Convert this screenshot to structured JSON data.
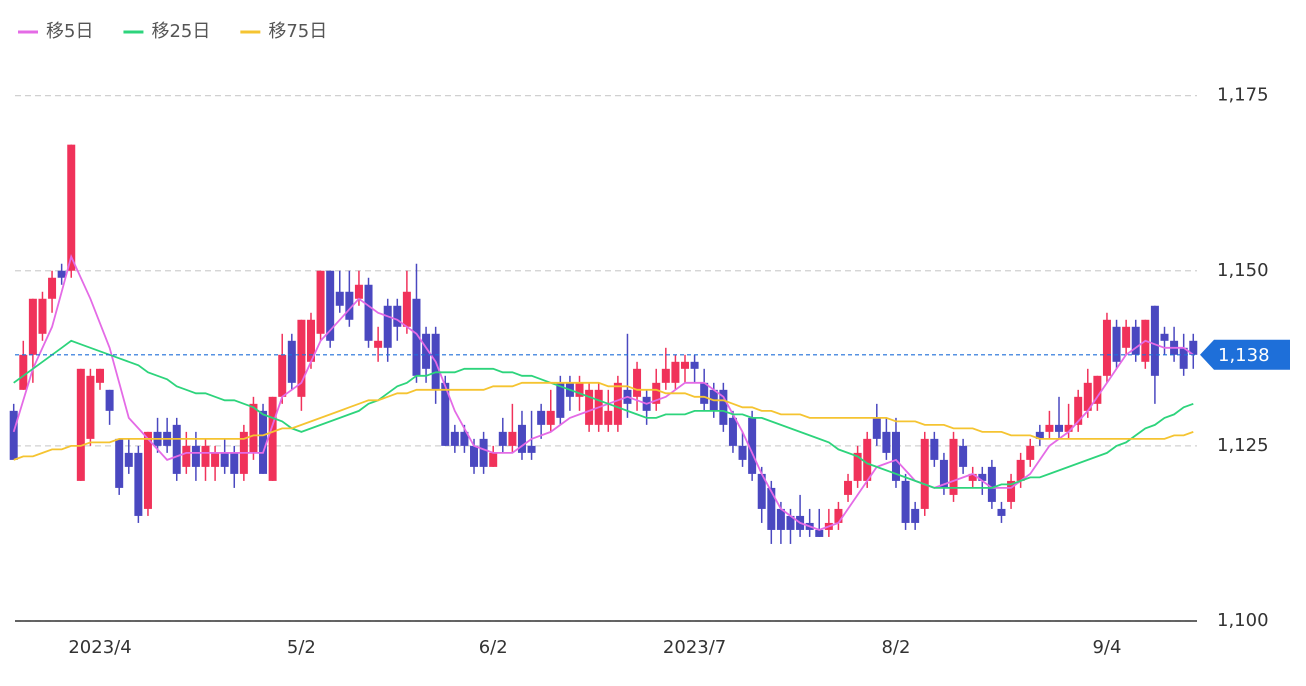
{
  "chart_data": {
    "type": "candlestick",
    "categories": [
      null,
      null,
      null,
      null,
      null,
      null,
      null,
      null,
      null,
      "2023/4",
      null,
      null,
      null,
      null,
      null,
      null,
      null,
      null,
      null,
      null,
      null,
      null,
      null,
      null,
      null,
      null,
      null,
      null,
      null,
      null,
      "5/2",
      null,
      null,
      null,
      null,
      null,
      null,
      null,
      null,
      null,
      null,
      null,
      null,
      null,
      null,
      null,
      null,
      null,
      null,
      null,
      "6/2",
      null,
      null,
      null,
      null,
      null,
      null,
      null,
      null,
      null,
      null,
      null,
      null,
      null,
      null,
      null,
      null,
      null,
      null,
      null,
      null,
      "2023/7",
      null,
      null,
      null,
      null,
      null,
      null,
      null,
      null,
      null,
      null,
      null,
      null,
      null,
      null,
      null,
      null,
      null,
      null,
      null,
      null,
      "8/2",
      null,
      null,
      null,
      null,
      null,
      null,
      null,
      null,
      null,
      null,
      null,
      null,
      null,
      null,
      null,
      null,
      null,
      null,
      null,
      null,
      null,
      "9/4",
      null,
      null,
      null,
      null,
      null,
      null,
      null,
      null,
      null
    ],
    "candles": {
      "up_color": "#f0325a",
      "down_color": "#4a48c0",
      "open": [
        1130,
        1133,
        1138,
        1141,
        1146,
        1150,
        1150,
        1120,
        1126,
        1134,
        1133,
        1126,
        1124,
        1124,
        1116,
        1127,
        1127,
        1128,
        1122,
        1125,
        1122,
        1122,
        1124,
        1124,
        1121,
        1124,
        1130,
        1120,
        1132,
        1140,
        1132,
        1137,
        1141,
        1150,
        1147,
        1147,
        1146,
        1148,
        1139,
        1145,
        1145,
        1142,
        1146,
        1141,
        1141,
        1134,
        1127,
        1127,
        1125,
        1126,
        1122,
        1127,
        1125,
        1128,
        1125,
        1130,
        1128,
        1134,
        1134,
        1132,
        1128,
        1128,
        1128,
        1128,
        1133,
        1132,
        1132,
        1131,
        1134,
        1134,
        1136,
        1137,
        1134,
        1133,
        1133,
        1129,
        1125,
        1129,
        1121,
        1119,
        1116,
        1115,
        1115,
        1114,
        1113,
        1113,
        1114,
        1118,
        1120,
        1120,
        1129,
        1127,
        1127,
        1120,
        1116,
        1116,
        1126,
        1123,
        1118,
        1125,
        1120,
        1121,
        1122,
        1116,
        1117,
        1120,
        1123,
        1127,
        1127,
        1128,
        1127,
        1128,
        1130,
        1131,
        1135,
        1142,
        1139,
        1142,
        1137,
        1145,
        1141,
        1140,
        1139,
        1140
      ],
      "high": [
        1131,
        1140,
        1146,
        1147,
        1150,
        1151,
        1168,
        1136,
        1136,
        1136,
        1133,
        1126,
        1126,
        1125,
        1127,
        1129,
        1129,
        1129,
        1127,
        1127,
        1126,
        1125,
        1126,
        1125,
        1128,
        1132,
        1131,
        1132,
        1141,
        1141,
        1143,
        1144,
        1150,
        1150,
        1150,
        1150,
        1150,
        1149,
        1142,
        1146,
        1146,
        1150,
        1151,
        1142,
        1142,
        1135,
        1128,
        1128,
        1126,
        1127,
        1125,
        1129,
        1131,
        1130,
        1130,
        1131,
        1133,
        1135,
        1135,
        1135,
        1134,
        1134,
        1133,
        1135,
        1141,
        1137,
        1133,
        1136,
        1139,
        1138,
        1138,
        1138,
        1136,
        1134,
        1134,
        1130,
        1127,
        1130,
        1122,
        1120,
        1117,
        1116,
        1118,
        1116,
        1116,
        1116,
        1117,
        1121,
        1125,
        1127,
        1131,
        1129,
        1129,
        1121,
        1117,
        1127,
        1127,
        1124,
        1127,
        1126,
        1122,
        1122,
        1123,
        1117,
        1121,
        1124,
        1126,
        1128,
        1130,
        1132,
        1131,
        1133,
        1136,
        1135,
        1144,
        1143,
        1143,
        1143,
        1143,
        1145,
        1142,
        1142,
        1141,
        1141
      ],
      "low": [
        1123,
        1133,
        1134,
        1140,
        1144,
        1148,
        1149,
        1120,
        1125,
        1133,
        1128,
        1118,
        1121,
        1114,
        1115,
        1124,
        1124,
        1120,
        1121,
        1120,
        1120,
        1120,
        1121,
        1119,
        1120,
        1123,
        1121,
        1120,
        1131,
        1133,
        1130,
        1136,
        1140,
        1139,
        1144,
        1142,
        1145,
        1139,
        1137,
        1137,
        1140,
        1141,
        1134,
        1134,
        1131,
        1125,
        1124,
        1124,
        1121,
        1121,
        1122,
        1124,
        1124,
        1123,
        1123,
        1126,
        1127,
        1128,
        1130,
        1130,
        1127,
        1127,
        1127,
        1127,
        1129,
        1130,
        1128,
        1130,
        1133,
        1133,
        1134,
        1134,
        1130,
        1129,
        1127,
        1124,
        1122,
        1120,
        1114,
        1111,
        1111,
        1111,
        1112,
        1112,
        1112,
        1112,
        1113,
        1117,
        1119,
        1119,
        1125,
        1123,
        1119,
        1113,
        1113,
        1115,
        1122,
        1118,
        1117,
        1121,
        1119,
        1118,
        1116,
        1114,
        1116,
        1119,
        1122,
        1125,
        1126,
        1126,
        1126,
        1127,
        1129,
        1130,
        1134,
        1136,
        1138,
        1137,
        1136,
        1131,
        1138,
        1137,
        1135,
        1136
      ],
      "close": [
        1123,
        1138,
        1146,
        1146,
        1149,
        1149,
        1168,
        1136,
        1135,
        1136,
        1130,
        1119,
        1122,
        1115,
        1127,
        1125,
        1125,
        1121,
        1125,
        1122,
        1125,
        1124,
        1122,
        1121,
        1127,
        1131,
        1121,
        1132,
        1138,
        1134,
        1143,
        1143,
        1150,
        1140,
        1145,
        1143,
        1148,
        1140,
        1140,
        1139,
        1142,
        1147,
        1135,
        1136,
        1133,
        1125,
        1125,
        1125,
        1122,
        1122,
        1124,
        1125,
        1127,
        1124,
        1124,
        1128,
        1130,
        1129,
        1132,
        1134,
        1133,
        1133,
        1130,
        1134,
        1131,
        1136,
        1130,
        1134,
        1136,
        1137,
        1137,
        1136,
        1131,
        1130,
        1128,
        1125,
        1123,
        1121,
        1116,
        1113,
        1113,
        1113,
        1113,
        1113,
        1112,
        1114,
        1116,
        1120,
        1124,
        1126,
        1126,
        1124,
        1120,
        1114,
        1114,
        1126,
        1123,
        1119,
        1126,
        1122,
        1121,
        1120,
        1117,
        1115,
        1120,
        1123,
        1125,
        1126,
        1128,
        1127,
        1128,
        1132,
        1134,
        1135,
        1143,
        1137,
        1142,
        1138,
        1143,
        1135,
        1140,
        1138,
        1136,
        1138
      ]
    },
    "series": [
      {
        "name": "移5日",
        "color": "#e46be6",
        "values": [
          1127,
          1131.5,
          1136,
          1139,
          1142,
          1147,
          1152,
          1149,
          1146,
          1142.5,
          1139,
          1134,
          1129,
          1127.5,
          1126,
          1124.5,
          1123,
          1123.5,
          1124,
          1124,
          1124,
          1124,
          1124,
          1124,
          1124,
          1124,
          1124,
          1128,
          1132,
          1133,
          1134,
          1137,
          1140,
          1141.5,
          1143,
          1144.5,
          1146,
          1145,
          1144,
          1143.5,
          1143,
          1142,
          1141,
          1139,
          1137,
          1133.5,
          1130,
          1127.5,
          1125,
          1124.5,
          1124,
          1124,
          1124,
          1125,
          1126,
          1126.5,
          1127,
          1128,
          1129,
          1129.5,
          1130,
          1130.5,
          1131,
          1131.5,
          1132,
          1131.5,
          1131,
          1131.5,
          1132,
          1133,
          1134,
          1134,
          1134,
          1133,
          1132,
          1129.5,
          1127,
          1124,
          1121,
          1118.5,
          1116,
          1115,
          1114,
          1113.5,
          1113,
          1113.5,
          1114,
          1116,
          1118,
          1120,
          1122,
          1122.5,
          1123,
          1121.5,
          1120,
          1119.5,
          1119,
          1119.5,
          1120,
          1120.5,
          1121,
          1120,
          1119,
          1119,
          1119,
          1120,
          1121,
          1123,
          1125,
          1126,
          1127,
          1128.5,
          1130,
          1132,
          1134,
          1136,
          1138,
          1139,
          1140,
          1139.5,
          1139,
          1139,
          1139,
          1138
        ]
      },
      {
        "name": "移25日",
        "color": "#2dd47c",
        "values": [
          1134,
          1135,
          1136,
          1137,
          1138,
          1139,
          1140,
          1139.5,
          1139,
          1138.5,
          1138,
          1137.5,
          1137,
          1136.5,
          1135.5,
          1135,
          1134.5,
          1133.5,
          1133,
          1132.5,
          1132.5,
          1132,
          1131.5,
          1131.5,
          1131,
          1130.5,
          1129.5,
          1129,
          1128.5,
          1127.5,
          1127,
          1127.5,
          1128,
          1128.5,
          1129,
          1129.5,
          1130,
          1131,
          1131.5,
          1132.5,
          1133.5,
          1134,
          1135,
          1135,
          1135.5,
          1135.5,
          1135.5,
          1136,
          1136,
          1136,
          1136,
          1135.5,
          1135.5,
          1135,
          1135,
          1134.5,
          1134,
          1133.5,
          1133,
          1132.5,
          1132,
          1131.5,
          1131,
          1130.5,
          1130,
          1129.5,
          1129,
          1129,
          1129.5,
          1129.5,
          1129.5,
          1130,
          1130,
          1130,
          1130,
          1129.5,
          1129.5,
          1129,
          1129,
          1128.5,
          1128,
          1127.5,
          1127,
          1126.5,
          1126,
          1125.5,
          1124.5,
          1124,
          1123.5,
          1122.5,
          1122,
          1121.5,
          1121,
          1120.5,
          1120,
          1119.5,
          1119,
          1119,
          1119,
          1119,
          1119,
          1119,
          1119,
          1119.5,
          1119.5,
          1120,
          1120.5,
          1120.5,
          1121,
          1121.5,
          1122,
          1122.5,
          1123,
          1123.5,
          1124,
          1125,
          1125.5,
          1126.5,
          1127.5,
          1128,
          1129,
          1129.5,
          1130.5,
          1131
        ]
      },
      {
        "name": "移75日",
        "color": "#f5c431",
        "values": [
          1123,
          1123.5,
          1123.5,
          1124,
          1124.5,
          1124.5,
          1125,
          1125,
          1125.5,
          1125.5,
          1125.5,
          1126,
          1126,
          1126,
          1126,
          1126,
          1126,
          1126,
          1126,
          1126,
          1126,
          1126,
          1126,
          1126,
          1126,
          1126.5,
          1126.5,
          1127,
          1127.5,
          1127.5,
          1128,
          1128.5,
          1129,
          1129.5,
          1130,
          1130.5,
          1131,
          1131.5,
          1131.5,
          1132,
          1132.5,
          1132.5,
          1133,
          1133,
          1133,
          1133,
          1133,
          1133,
          1133,
          1133,
          1133.5,
          1133.5,
          1133.5,
          1134,
          1134,
          1134,
          1134,
          1134,
          1134,
          1134,
          1134,
          1134,
          1133.5,
          1133.5,
          1133.5,
          1133,
          1133,
          1133,
          1132.5,
          1132.5,
          1132.5,
          1132,
          1132,
          1131.5,
          1131.5,
          1131,
          1130.5,
          1130.5,
          1130,
          1130,
          1129.5,
          1129.5,
          1129.5,
          1129,
          1129,
          1129,
          1129,
          1129,
          1129,
          1129,
          1129,
          1129,
          1128.5,
          1128.5,
          1128.5,
          1128,
          1128,
          1128,
          1127.5,
          1127.5,
          1127.5,
          1127,
          1127,
          1127,
          1126.5,
          1126.5,
          1126.5,
          1126,
          1126,
          1126,
          1126,
          1126,
          1126,
          1126,
          1126,
          1126,
          1126,
          1126,
          1126,
          1126,
          1126,
          1126.5,
          1126.5,
          1127
        ]
      }
    ],
    "ylim": [
      1100,
      1180
    ],
    "yticks": [
      {
        "value": 1100,
        "label": "1,100"
      },
      {
        "value": 1125,
        "label": "1,125"
      },
      {
        "value": 1150,
        "label": "1,150"
      },
      {
        "value": 1175,
        "label": "1,175"
      }
    ],
    "grid": true,
    "last_price": {
      "value": 1138,
      "label": "1,138",
      "color": "#1e6fd9"
    }
  }
}
